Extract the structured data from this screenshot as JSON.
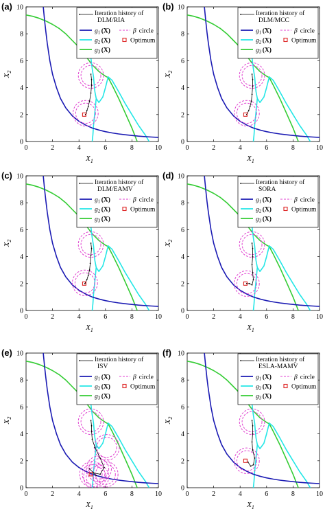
{
  "figure": {
    "chart_data": [
      {
        "type": "line",
        "panel_label": "(a)",
        "xlabel": "X1",
        "ylabel": "X2",
        "xlim": [
          0,
          10
        ],
        "ylim": [
          0,
          10
        ],
        "xticks": [
          "0",
          "2",
          "4",
          "6",
          "8",
          "10"
        ],
        "yticks": [
          "0",
          "2",
          "4",
          "6",
          "8",
          "10"
        ],
        "method": "DLM/RIA",
        "history_x": [
          4.9,
          4.95,
          4.95,
          4.9,
          4.8,
          4.7,
          4.6,
          4.55,
          4.5,
          4.5
        ],
        "history_y": [
          5.0,
          4.6,
          4.2,
          3.6,
          3.0,
          2.6,
          2.3,
          2.1,
          2.0,
          2.0
        ],
        "circles_x": [
          4.9,
          4.5
        ],
        "circles_y": [
          4.9,
          2.1
        ],
        "optimum": [
          4.4,
          2.0
        ]
      },
      {
        "type": "line",
        "panel_label": "(b)",
        "xlabel": "X1",
        "ylabel": "X2",
        "xlim": [
          0,
          10
        ],
        "ylim": [
          0,
          10
        ],
        "xticks": [
          "0",
          "2",
          "4",
          "6",
          "8",
          "10"
        ],
        "yticks": [
          "0",
          "2",
          "4",
          "6",
          "8",
          "10"
        ],
        "method": "DLM/MCC",
        "history_x": [
          4.9,
          4.95,
          4.95,
          4.9,
          4.85,
          4.75,
          4.65,
          4.55,
          4.5
        ],
        "history_y": [
          5.0,
          4.6,
          4.1,
          3.5,
          3.0,
          2.6,
          2.3,
          2.1,
          2.0
        ],
        "circles_x": [
          4.9,
          4.5
        ],
        "circles_y": [
          4.9,
          2.1
        ],
        "optimum": [
          4.4,
          2.0
        ]
      },
      {
        "type": "line",
        "panel_label": "(c)",
        "xlabel": "X1",
        "ylabel": "X2",
        "xlim": [
          0,
          10
        ],
        "ylim": [
          0,
          10
        ],
        "xticks": [
          "0",
          "2",
          "4",
          "6",
          "8",
          "10"
        ],
        "yticks": [
          "0",
          "2",
          "4",
          "6",
          "8",
          "10"
        ],
        "method": "DLM/EAMV",
        "history_x": [
          4.9,
          4.95,
          4.9,
          4.85,
          4.8,
          4.7,
          4.6,
          4.5,
          4.45
        ],
        "history_y": [
          5.0,
          4.6,
          4.1,
          3.5,
          3.0,
          2.6,
          2.3,
          2.1,
          2.0
        ],
        "circles_x": [
          4.9,
          4.45
        ],
        "circles_y": [
          4.9,
          2.05
        ],
        "optimum": [
          4.4,
          2.0
        ]
      },
      {
        "type": "line",
        "panel_label": "(d)",
        "xlabel": "X1",
        "ylabel": "X2",
        "xlim": [
          0,
          10
        ],
        "ylim": [
          0,
          10
        ],
        "xticks": [
          "0",
          "2",
          "4",
          "6",
          "8",
          "10"
        ],
        "yticks": [
          "0",
          "2",
          "4",
          "6",
          "8",
          "10"
        ],
        "method": "SORA",
        "history_x": [
          4.9,
          4.95,
          4.95,
          4.9,
          4.95,
          5.0,
          4.9,
          4.7,
          4.5
        ],
        "history_y": [
          5.0,
          4.6,
          4.0,
          3.4,
          2.8,
          2.3,
          1.9,
          2.0,
          2.0
        ],
        "circles_x": [
          4.9,
          4.5
        ],
        "circles_y": [
          4.9,
          2.0
        ],
        "optimum": [
          4.4,
          2.0
        ]
      },
      {
        "type": "line",
        "panel_label": "(e)",
        "xlabel": "X1",
        "ylabel": "X2",
        "xlim": [
          0,
          10
        ],
        "ylim": [
          0,
          10
        ],
        "xticks": [
          "0",
          "2",
          "4",
          "6",
          "8",
          "10"
        ],
        "yticks": [
          "0",
          "2",
          "4",
          "6",
          "8",
          "10"
        ],
        "method": "ISV",
        "history_x": [
          4.9,
          4.95,
          4.95,
          5.0,
          5.2,
          5.6,
          5.9,
          5.6,
          5.1,
          4.8,
          5.3
        ],
        "history_y": [
          5.0,
          4.6,
          4.2,
          3.6,
          3.0,
          2.2,
          1.5,
          1.0,
          1.1,
          1.4,
          0.9
        ],
        "circles_x": [
          4.9,
          6.1,
          5.0,
          5.5,
          6.0,
          5.3
        ],
        "circles_y": [
          4.9,
          3.0,
          1.0,
          1.4,
          1.0,
          0.8
        ],
        "optimum": [
          4.9,
          1.0
        ]
      },
      {
        "type": "line",
        "panel_label": "(f)",
        "xlabel": "X1",
        "ylabel": "X2",
        "xlim": [
          0,
          10
        ],
        "ylim": [
          0,
          10
        ],
        "xticks": [
          "0",
          "2",
          "4",
          "6",
          "8",
          "10"
        ],
        "yticks": [
          "0",
          "2",
          "4",
          "6",
          "8",
          "10"
        ],
        "method": "ESLA-MAMV",
        "history_x": [
          4.9,
          4.95,
          4.95,
          4.9,
          4.95,
          5.1,
          5.0,
          4.8,
          4.6
        ],
        "history_y": [
          5.0,
          4.6,
          4.0,
          3.4,
          2.8,
          2.2,
          1.7,
          1.6,
          1.9
        ],
        "circles_x": [
          4.9,
          4.5
        ],
        "circles_y": [
          4.9,
          2.0
        ],
        "optimum": [
          4.4,
          2.0
        ]
      }
    ],
    "constraints": {
      "g1_x": [
        1.3,
        1.4,
        1.5,
        1.6,
        1.8,
        2.0,
        2.3,
        2.6,
        3.0,
        3.5,
        4.0,
        4.5,
        5.0,
        5.5,
        6.0,
        6.5,
        7.0,
        7.5,
        8.0,
        8.5,
        9.0,
        9.5,
        10.0
      ],
      "g1_y": [
        10.0,
        9.0,
        8.1,
        7.3,
        6.0,
        5.0,
        4.0,
        3.2,
        2.5,
        1.9,
        1.5,
        1.22,
        1.0,
        0.85,
        0.73,
        0.64,
        0.56,
        0.5,
        0.45,
        0.4,
        0.36,
        0.33,
        0.3
      ],
      "g2_x": [
        4.9,
        5.0,
        5.1,
        5.15,
        5.2,
        5.3,
        5.5,
        5.8,
        6.0,
        6.2,
        6.5,
        7.0,
        7.5,
        8.0,
        8.5,
        9.0,
        9.3
      ],
      "g2_y": [
        6.2,
        5.4,
        4.8,
        4.2,
        3.7,
        3.2,
        2.9,
        3.3,
        4.0,
        4.8,
        4.55,
        3.7,
        2.8,
        2.0,
        1.2,
        0.5,
        0.0
      ],
      "g2_tail_x": [
        5.3,
        5.2,
        5.1,
        5.05,
        5.0
      ],
      "g2_tail_y": [
        3.2,
        2.2,
        1.2,
        0.5,
        0.0
      ],
      "g3_x": [
        0.0,
        0.5,
        1.0,
        1.5,
        2.0,
        2.5,
        3.0,
        3.5,
        4.0,
        4.5,
        5.0,
        5.5,
        6.0,
        6.2,
        6.5,
        7.0,
        7.5,
        8.0,
        8.4
      ],
      "g3_y": [
        9.4,
        9.3,
        9.15,
        8.95,
        8.7,
        8.4,
        8.0,
        7.5,
        7.0,
        6.35,
        5.7,
        5.2,
        4.85,
        4.75,
        4.2,
        3.2,
        2.1,
        1.0,
        0.0
      ]
    },
    "legend": {
      "history_label_prefix": "Iteration history of",
      "g1": "g",
      "g2": "g",
      "g3": "g",
      "sub1": "1",
      "sub2": "2",
      "sub3": "3",
      "x_arg": "(X)",
      "beta": "β",
      "circle": "circle",
      "optimum": "Optimum"
    },
    "colors": {
      "g1": "#1a1ab3",
      "g2": "#22e6e6",
      "g3": "#33cc33",
      "history": "#000000",
      "beta_circle": "#e040d0",
      "optimum": "#dd2222"
    }
  }
}
